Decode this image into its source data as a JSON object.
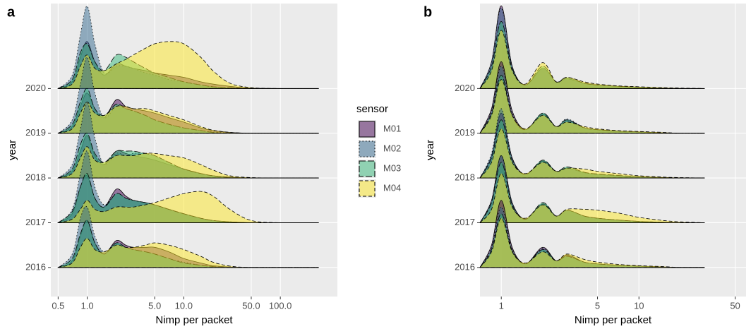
{
  "chart_data": [
    {
      "type": "ridgeline",
      "panel_label": "a",
      "x_label": "Nimp per packet",
      "y_label": "year",
      "log_x": true,
      "grid": true,
      "legend": true,
      "legend_title": "sensor",
      "xlim": [
        0.42,
        390
      ],
      "xticks": [
        0.5,
        {
          "value": 1,
          "label": "1.0"
        },
        {
          "value": 5,
          "label": "5.0"
        },
        {
          "value": 10,
          "label": "10.0"
        },
        {
          "value": 50,
          "label": "50.0"
        },
        {
          "value": 100,
          "label": "100.0"
        }
      ],
      "ylim": [
        2015.35,
        2021.9
      ],
      "yticks": [
        2016,
        2017,
        2018,
        2019,
        2020
      ],
      "x": [
        0.5,
        0.7,
        0.85,
        1,
        1.2,
        1.5,
        2,
        2.5,
        3,
        4,
        5,
        7,
        10,
        15,
        20,
        30,
        50,
        100,
        250
      ],
      "series": [
        {
          "name": "M01",
          "color": "#440154",
          "alpha": 0.5,
          "linetype": "solid",
          "values": [
            [
              0,
              0.15,
              0.7,
              1.05,
              0.55,
              0.3,
              0.6,
              0.5,
              0.45,
              0.45,
              0.45,
              0.35,
              0.2,
              0.1,
              0.04,
              0.01,
              0,
              0,
              0
            ],
            [
              0,
              0.2,
              0.8,
              1.05,
              0.55,
              0.35,
              0.75,
              0.6,
              0.5,
              0.45,
              0.4,
              0.3,
              0.2,
              0.1,
              0.05,
              0.02,
              0,
              0,
              0
            ],
            [
              0,
              0.15,
              0.6,
              0.95,
              0.5,
              0.3,
              0.6,
              0.55,
              0.5,
              0.45,
              0.4,
              0.3,
              0.2,
              0.1,
              0.05,
              0.02,
              0,
              0,
              0
            ],
            [
              0,
              0.15,
              0.6,
              0.9,
              0.55,
              0.35,
              0.75,
              0.6,
              0.55,
              0.5,
              0.45,
              0.35,
              0.25,
              0.12,
              0.06,
              0.02,
              0,
              0,
              0
            ],
            [
              0,
              0.15,
              0.7,
              1.05,
              0.6,
              0.3,
              0.55,
              0.5,
              0.45,
              0.4,
              0.35,
              0.3,
              0.25,
              0.15,
              0.1,
              0.05,
              0.01,
              0,
              0
            ]
          ]
        },
        {
          "name": "M02",
          "color": "#31688e",
          "alpha": 0.5,
          "linetype": "dotted",
          "values": [
            [
              0,
              0.3,
              1.1,
              1.35,
              0.7,
              0.35,
              0.55,
              0.45,
              0.4,
              0.35,
              0.3,
              0.2,
              0.12,
              0.05,
              0.02,
              0,
              0,
              0,
              0
            ],
            [
              0,
              0.3,
              1.1,
              1.6,
              0.8,
              0.4,
              0.65,
              0.55,
              0.5,
              0.45,
              0.4,
              0.3,
              0.2,
              0.1,
              0.05,
              0.02,
              0,
              0,
              0
            ],
            [
              0,
              0.3,
              1.1,
              1.7,
              0.9,
              0.3,
              0.55,
              0.5,
              0.55,
              0.55,
              0.5,
              0.35,
              0.2,
              0.1,
              0.05,
              0.02,
              0,
              0,
              0
            ],
            [
              0,
              0.3,
              1.1,
              1.7,
              0.9,
              0.35,
              0.6,
              0.55,
              0.5,
              0.4,
              0.3,
              0.2,
              0.12,
              0.06,
              0.03,
              0.01,
              0,
              0,
              0
            ],
            [
              0,
              0.3,
              1.2,
              1.84,
              1.0,
              0.35,
              0.5,
              0.5,
              0.45,
              0.35,
              0.3,
              0.2,
              0.15,
              0.08,
              0.04,
              0.02,
              0,
              0,
              0
            ]
          ]
        },
        {
          "name": "M03",
          "color": "#35b779",
          "alpha": 0.5,
          "linetype": "longdash",
          "values": [
            [
              0,
              0.2,
              0.75,
              1.05,
              0.55,
              0.3,
              0.55,
              0.45,
              0.4,
              0.35,
              0.3,
              0.2,
              0.1,
              0.05,
              0.02,
              0,
              0,
              0,
              0
            ],
            [
              0,
              0.25,
              0.8,
              1.1,
              0.55,
              0.35,
              0.65,
              0.55,
              0.5,
              0.45,
              0.4,
              0.3,
              0.2,
              0.1,
              0.05,
              0.02,
              0,
              0,
              0
            ],
            [
              0,
              0.2,
              0.75,
              1.0,
              0.55,
              0.35,
              0.6,
              0.6,
              0.6,
              0.55,
              0.5,
              0.35,
              0.2,
              0.1,
              0.05,
              0.01,
              0,
              0,
              0
            ],
            [
              0,
              0.2,
              0.7,
              1.0,
              0.55,
              0.4,
              0.65,
              0.55,
              0.5,
              0.4,
              0.3,
              0.2,
              0.12,
              0.06,
              0.02,
              0,
              0,
              0,
              0
            ],
            [
              0,
              0.2,
              0.8,
              1.0,
              0.6,
              0.4,
              0.75,
              0.7,
              0.6,
              0.45,
              0.35,
              0.25,
              0.15,
              0.08,
              0.04,
              0.02,
              0,
              0,
              0
            ]
          ]
        },
        {
          "name": "M04",
          "color": "#fde725",
          "alpha": 0.5,
          "linetype": "dashed",
          "values": [
            [
              0,
              0.1,
              0.45,
              0.65,
              0.4,
              0.35,
              0.5,
              0.45,
              0.45,
              0.5,
              0.55,
              0.5,
              0.4,
              0.25,
              0.12,
              0.03,
              0,
              0,
              0
            ],
            [
              0,
              0.08,
              0.3,
              0.5,
              0.3,
              0.25,
              0.35,
              0.35,
              0.35,
              0.4,
              0.45,
              0.55,
              0.65,
              0.7,
              0.6,
              0.3,
              0.05,
              0,
              0
            ],
            [
              0,
              0.1,
              0.45,
              0.7,
              0.4,
              0.35,
              0.5,
              0.5,
              0.5,
              0.55,
              0.55,
              0.5,
              0.45,
              0.3,
              0.18,
              0.05,
              0.01,
              0,
              0
            ],
            [
              0,
              0.1,
              0.45,
              0.7,
              0.45,
              0.4,
              0.6,
              0.6,
              0.55,
              0.55,
              0.5,
              0.4,
              0.3,
              0.15,
              0.07,
              0.02,
              0,
              0,
              0
            ],
            [
              0,
              0.1,
              0.5,
              0.75,
              0.45,
              0.4,
              0.55,
              0.65,
              0.75,
              0.9,
              1.0,
              1.05,
              1.0,
              0.7,
              0.4,
              0.12,
              0.02,
              0,
              0
            ]
          ]
        }
      ]
    },
    {
      "type": "ridgeline",
      "panel_label": "b",
      "x_label": "Nimp per packet",
      "y_label": "year",
      "log_x": true,
      "grid": true,
      "legend": false,
      "xlim": [
        0.7,
        60
      ],
      "xticks": [
        1,
        5,
        10,
        50
      ],
      "ylim": [
        2015.35,
        2021.9
      ],
      "yticks": [
        2016,
        2017,
        2018,
        2019,
        2020
      ],
      "x": [
        0.7,
        0.85,
        1,
        1.2,
        1.5,
        2,
        2.5,
        3,
        4,
        5,
        7,
        10,
        15,
        20,
        30
      ],
      "series": [
        {
          "name": "M01",
          "color": "#440154",
          "alpha": 0.5,
          "linetype": "solid",
          "values": [
            [
              0,
              0.5,
              1.5,
              0.45,
              0.08,
              0.45,
              0.15,
              0.28,
              0.12,
              0.08,
              0.05,
              0.03,
              0.01,
              0,
              0
            ],
            [
              0,
              0.5,
              1.5,
              0.45,
              0.08,
              0.42,
              0.15,
              0.28,
              0.15,
              0.1,
              0.06,
              0.03,
              0.01,
              0,
              0
            ],
            [
              0,
              0.5,
              1.45,
              0.45,
              0.08,
              0.38,
              0.15,
              0.22,
              0.12,
              0.08,
              0.05,
              0.03,
              0.01,
              0,
              0
            ],
            [
              0,
              0.55,
              1.6,
              0.5,
              0.08,
              0.42,
              0.15,
              0.3,
              0.12,
              0.08,
              0.05,
              0.03,
              0.01,
              0,
              0
            ],
            [
              0,
              0.6,
              1.85,
              0.5,
              0.08,
              0.45,
              0.15,
              0.22,
              0.12,
              0.08,
              0.05,
              0.03,
              0.01,
              0,
              0
            ]
          ]
        },
        {
          "name": "M02",
          "color": "#31688e",
          "alpha": 0.5,
          "linetype": "dotted",
          "values": [
            [
              0,
              0.45,
              1.35,
              0.4,
              0.08,
              0.42,
              0.15,
              0.25,
              0.12,
              0.08,
              0.05,
              0.03,
              0.01,
              0,
              0
            ],
            [
              0,
              0.5,
              1.5,
              0.45,
              0.08,
              0.42,
              0.15,
              0.28,
              0.15,
              0.1,
              0.06,
              0.03,
              0.01,
              0,
              0
            ],
            [
              0,
              0.55,
              1.55,
              0.45,
              0.08,
              0.38,
              0.15,
              0.22,
              0.12,
              0.08,
              0.05,
              0.03,
              0.01,
              0,
              0
            ],
            [
              0,
              0.5,
              1.5,
              0.45,
              0.08,
              0.45,
              0.15,
              0.32,
              0.13,
              0.08,
              0.05,
              0.03,
              0.01,
              0,
              0
            ],
            [
              0,
              0.6,
              1.8,
              0.5,
              0.08,
              0.45,
              0.15,
              0.22,
              0.12,
              0.08,
              0.05,
              0.03,
              0.01,
              0,
              0
            ]
          ]
        },
        {
          "name": "M03",
          "color": "#35b779",
          "alpha": 0.5,
          "linetype": "longdash",
          "values": [
            [
              0,
              0.4,
              1.2,
              0.38,
              0.08,
              0.4,
              0.15,
              0.25,
              0.12,
              0.08,
              0.05,
              0.03,
              0.01,
              0,
              0
            ],
            [
              0,
              0.45,
              1.35,
              0.4,
              0.08,
              0.45,
              0.15,
              0.28,
              0.15,
              0.1,
              0.06,
              0.03,
              0.01,
              0,
              0
            ],
            [
              0,
              0.45,
              1.3,
              0.4,
              0.08,
              0.4,
              0.15,
              0.25,
              0.13,
              0.09,
              0.06,
              0.03,
              0.01,
              0,
              0
            ],
            [
              0,
              0.45,
              1.3,
              0.4,
              0.08,
              0.45,
              0.15,
              0.3,
              0.12,
              0.08,
              0.05,
              0.03,
              0.01,
              0,
              0
            ],
            [
              0,
              0.5,
              1.5,
              0.45,
              0.08,
              0.5,
              0.15,
              0.25,
              0.12,
              0.08,
              0.05,
              0.03,
              0.01,
              0,
              0
            ]
          ]
        },
        {
          "name": "M04",
          "color": "#fde725",
          "alpha": 0.5,
          "linetype": "dashed",
          "values": [
            [
              0,
              0.35,
              1.1,
              0.35,
              0.1,
              0.35,
              0.15,
              0.3,
              0.18,
              0.12,
              0.07,
              0.04,
              0.02,
              0,
              0
            ],
            [
              0,
              0.3,
              1.1,
              0.35,
              0.1,
              0.4,
              0.15,
              0.3,
              0.3,
              0.28,
              0.22,
              0.12,
              0.05,
              0.02,
              0
            ],
            [
              0,
              0.35,
              1.1,
              0.35,
              0.1,
              0.35,
              0.15,
              0.22,
              0.2,
              0.15,
              0.1,
              0.05,
              0.02,
              0.01,
              0
            ],
            [
              0,
              0.4,
              1.2,
              0.4,
              0.1,
              0.4,
              0.15,
              0.25,
              0.15,
              0.1,
              0.06,
              0.04,
              0.02,
              0,
              0
            ],
            [
              0,
              0.4,
              1.3,
              0.4,
              0.1,
              0.58,
              0.15,
              0.25,
              0.15,
              0.1,
              0.06,
              0.04,
              0.02,
              0.01,
              0
            ]
          ]
        }
      ]
    }
  ]
}
